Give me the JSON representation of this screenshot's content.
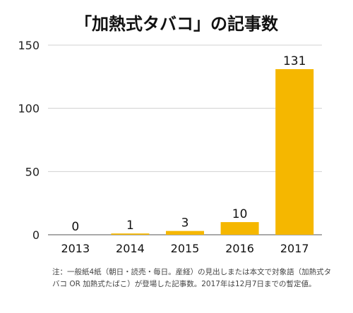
{
  "chart_data": {
    "type": "bar",
    "title": "「加熱式タバコ」の記事数",
    "categories": [
      "2013",
      "2014",
      "2015",
      "2016",
      "2017"
    ],
    "values": [
      0,
      1,
      3,
      10,
      131
    ],
    "ylim": [
      0,
      150
    ],
    "yticks": [
      0,
      50,
      100,
      150
    ],
    "grid": true,
    "bar_color": "#F5B700",
    "data_labels": true
  },
  "note": "注：一般紙4紙（朝日・読売・毎日。産経）の見出しまたは本文で対象語（加熱式タバコ OR 加熱式たばこ）が登場した記事数。2017年は12月7日までの暫定値。"
}
